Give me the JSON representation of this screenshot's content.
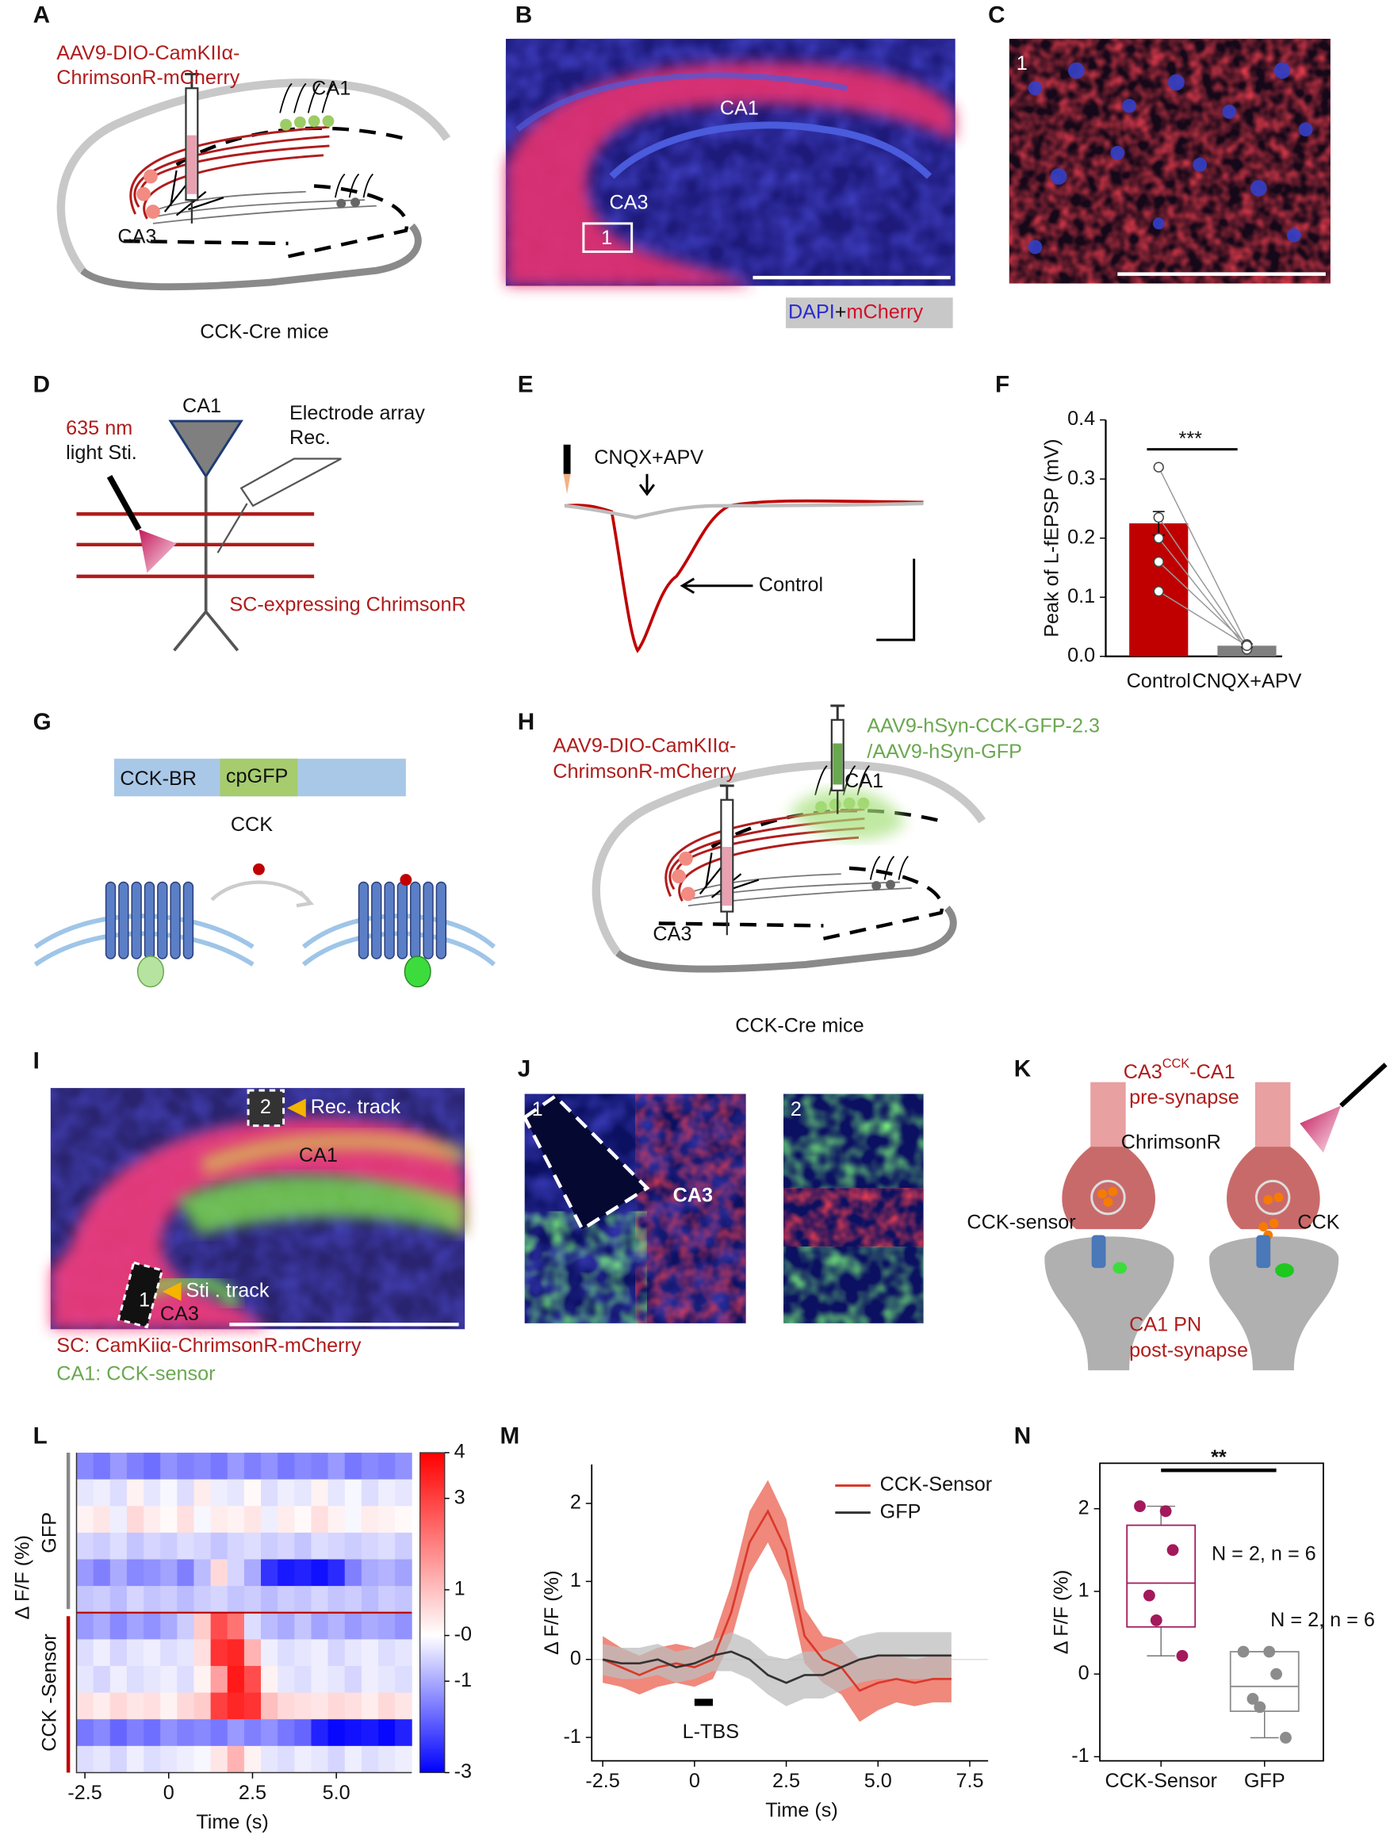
{
  "panels": {
    "A": {
      "letter": "A",
      "texts": [
        "AAV9-DIO-CamKIIα-",
        "ChrimsonR-mCherry",
        "CA1",
        "CA3",
        "CCK-Cre mice"
      ]
    },
    "B": {
      "letter": "B",
      "texts": [
        "CA1",
        "CA3",
        "1",
        "DAPI",
        "+",
        "mCherry"
      ]
    },
    "C": {
      "letter": "C",
      "texts": [
        "1"
      ]
    },
    "D": {
      "letter": "D",
      "texts": [
        "CA1",
        "635 nm",
        "light Sti.",
        "Electrode array",
        "Rec.",
        "SC-expressing ChrimsonR"
      ]
    },
    "E": {
      "letter": "E",
      "texts": [
        "CNQX+APV",
        "Control"
      ]
    },
    "F": {
      "letter": "F"
    },
    "G": {
      "letter": "G",
      "texts": [
        "CCK-BR",
        "cpGFP",
        "CCK"
      ]
    },
    "H": {
      "letter": "H",
      "texts": [
        "AAV9-DIO-CamKIIα-",
        "ChrimsonR-mCherry",
        "AAV9-hSyn-CCK-GFP-2.3",
        "/AAV9-hSyn-GFP",
        "CA1",
        "CA3",
        "CCK-Cre mice"
      ]
    },
    "I": {
      "letter": "I",
      "texts": [
        "2",
        "Rec. track",
        "CA1",
        "1",
        "Sti . track",
        "CA3",
        "SC: CamKiiα-ChrimsonR-mCherry",
        "CA1: CCK-sensor"
      ]
    },
    "J": {
      "letter": "J",
      "texts": [
        "1",
        "CA3",
        "2"
      ]
    },
    "K": {
      "letter": "K",
      "texts": [
        "CA3",
        "CCK",
        "-CA1",
        "pre-synapse",
        "ChrimsonR",
        "CCK-sensor",
        "CCK",
        "CA1 PN",
        "post-synapse"
      ]
    },
    "L": {
      "letter": "L"
    },
    "M": {
      "letter": "M"
    },
    "N": {
      "letter": "N"
    }
  },
  "chart_data": [
    {
      "type": "bar",
      "categories": [
        "Control",
        "CNQX+APV"
      ],
      "values": [
        0.225,
        0.018
      ],
      "errors": [
        0.02,
        0.003
      ],
      "colors": [
        "#c00000",
        "#7f7f7f"
      ],
      "points": [
        [
          0.32,
          0.235,
          0.2,
          0.16,
          0.11
        ],
        [
          0.02,
          0.015,
          0.012,
          0.02,
          0.018
        ]
      ],
      "ylabel": "Peak of L-fEPSP (mV)",
      "ylim": [
        0,
        0.4
      ],
      "yticks": [
        {
          "value": 0,
          "label": "0.0"
        },
        0.1,
        0.2,
        0.3,
        0.4
      ],
      "annotation": "***"
    },
    {
      "type": "heatmap",
      "x": [
        -2.5,
        -2,
        -1.5,
        -1,
        -0.5,
        0,
        0.5,
        1,
        1.5,
        2,
        2.5,
        3,
        3.5,
        4,
        4.5,
        5,
        5.5,
        6,
        6.5,
        7
      ],
      "rows": [
        [
          -1.4,
          -1.6,
          -1.2,
          -1.5,
          -1.7,
          -1.3,
          -1.5,
          -1.4,
          -1.6,
          -1.2,
          -1.5,
          -1.3,
          -1.6,
          -1.4,
          -1.5,
          -1.2,
          -1.6,
          -1.4,
          -1.5,
          -1.3
        ],
        [
          -0.3,
          -0.2,
          -0.4,
          0.2,
          -0.3,
          -0.1,
          -0.4,
          0.3,
          -0.2,
          -0.3,
          0.1,
          -0.4,
          -0.2,
          -0.3,
          0.2,
          -0.3,
          -0.1,
          -0.4,
          -0.2,
          -0.3
        ],
        [
          0.2,
          0.4,
          -0.2,
          0.6,
          0.3,
          0.1,
          0.5,
          -0.1,
          0.3,
          0.2,
          0.4,
          -0.2,
          0.3,
          0.1,
          0.5,
          0.2,
          -0.1,
          0.3,
          0.2,
          0.1
        ],
        [
          -0.5,
          -0.6,
          -0.4,
          -0.7,
          -0.5,
          -0.6,
          -0.4,
          -0.5,
          -0.7,
          -0.5,
          -0.4,
          -0.6,
          -0.5,
          -0.7,
          -0.4,
          -0.5,
          -0.6,
          -0.5,
          -0.4,
          -0.6
        ],
        [
          -1.2,
          -1.5,
          -1.0,
          -1.4,
          -1.3,
          -1.1,
          -1.5,
          -0.8,
          0.6,
          -0.5,
          -1.0,
          -2.4,
          -2.7,
          -2.6,
          -2.8,
          -2.5,
          -1.5,
          -1.0,
          -0.9,
          -1.1
        ],
        [
          -0.7,
          -0.6,
          -0.8,
          -0.5,
          -0.7,
          -0.6,
          -0.8,
          -0.6,
          -0.5,
          -0.7,
          -0.6,
          -0.8,
          -0.6,
          -0.7,
          -0.5,
          -0.7,
          -0.6,
          -0.8,
          -0.6,
          -0.7
        ],
        [
          -1.2,
          -1.0,
          -1.4,
          -1.1,
          -1.3,
          -1.0,
          -0.6,
          0.8,
          2.8,
          2.2,
          -0.4,
          -0.8,
          -1.0,
          -0.7,
          -1.1,
          -0.9,
          -1.2,
          -1.0,
          -1.1,
          -1.3
        ],
        [
          -0.4,
          -0.2,
          -0.5,
          -0.3,
          -0.2,
          -0.4,
          -0.3,
          0.5,
          3.2,
          3.4,
          1.2,
          -0.2,
          -0.4,
          -0.3,
          -0.2,
          -0.5,
          -0.3,
          -0.2,
          -0.4,
          -0.3
        ],
        [
          -0.3,
          -0.5,
          -0.2,
          -0.4,
          -0.3,
          -0.2,
          -0.4,
          0.2,
          1.5,
          3.6,
          2.8,
          0.2,
          -0.3,
          -0.4,
          -0.2,
          -0.3,
          -0.5,
          -0.2,
          -0.3,
          -0.4
        ],
        [
          0.5,
          0.3,
          0.6,
          0.4,
          0.5,
          0.2,
          0.6,
          0.8,
          3.0,
          3.4,
          3.2,
          1.0,
          0.6,
          0.5,
          0.4,
          0.6,
          0.5,
          0.3,
          0.6,
          0.4
        ],
        [
          -1.6,
          -1.4,
          -1.8,
          -1.5,
          -1.7,
          -1.3,
          -1.5,
          -1.4,
          -1.6,
          -1.2,
          -1.5,
          -1.3,
          -1.6,
          -1.8,
          -2.6,
          -2.9,
          -2.8,
          -2.7,
          -2.9,
          -2.6
        ],
        [
          -0.4,
          -0.3,
          -0.5,
          -0.2,
          -0.4,
          -0.3,
          -0.2,
          -0.1,
          0.4,
          1.2,
          0.2,
          -0.3,
          -0.4,
          -0.2,
          -0.3,
          -0.5,
          -0.2,
          -0.4,
          -0.3,
          -0.2
        ]
      ],
      "clim": [
        -3,
        4
      ],
      "colorbar_ticks": [
        4,
        3,
        1,
        {
          "value": 0,
          "label": "-0"
        },
        -1,
        -3
      ],
      "xlim": [
        -2.75,
        7.25
      ],
      "xticks": [
        -2.5,
        0,
        2.5,
        {
          "value": 5,
          "label": "5.0"
        }
      ],
      "xlabel": "Time (s)",
      "ylabel": "Δ F/F (%)",
      "groups": [
        "GFP",
        "CCK -Sensor"
      ]
    },
    {
      "type": "line",
      "x": [
        -2.5,
        -2,
        -1.5,
        -1,
        -0.5,
        0,
        0.5,
        1,
        1.5,
        2,
        2.5,
        3,
        3.5,
        4,
        4.5,
        5,
        5.5,
        6,
        6.5,
        7
      ],
      "series": [
        {
          "name": "CCK-Sensor",
          "color": "#d93a2b",
          "band_color": "#ee7b6e",
          "values": [
            0.0,
            -0.1,
            -0.2,
            -0.1,
            -0.05,
            -0.1,
            0.0,
            0.6,
            1.5,
            1.9,
            1.4,
            0.3,
            0.0,
            -0.1,
            -0.4,
            -0.3,
            -0.25,
            -0.3,
            -0.25,
            -0.25
          ],
          "errors": [
            0.3,
            0.25,
            0.25,
            0.25,
            0.25,
            0.25,
            0.25,
            0.35,
            0.4,
            0.4,
            0.4,
            0.35,
            0.3,
            0.35,
            0.4,
            0.35,
            0.3,
            0.3,
            0.3,
            0.3
          ]
        },
        {
          "name": "GFP",
          "color": "#333333",
          "band_color": "#bdbdbd",
          "values": [
            0.0,
            -0.05,
            -0.05,
            0.0,
            -0.1,
            -0.05,
            0.05,
            0.1,
            0.0,
            -0.2,
            -0.3,
            -0.2,
            -0.2,
            -0.1,
            0.0,
            0.05,
            0.05,
            0.05,
            0.05,
            0.05
          ],
          "errors": [
            0.2,
            0.2,
            0.2,
            0.2,
            0.2,
            0.2,
            0.2,
            0.25,
            0.25,
            0.25,
            0.3,
            0.3,
            0.3,
            0.3,
            0.3,
            0.3,
            0.3,
            0.3,
            0.3,
            0.3
          ]
        }
      ],
      "xlim": [
        -2.8,
        8
      ],
      "ylim": [
        -1.3,
        2.5
      ],
      "xticks": [
        -2.5,
        0,
        2.5,
        {
          "value": 5,
          "label": "5.0"
        },
        7.5
      ],
      "yticks": [
        -1,
        0,
        1,
        2
      ],
      "xlabel": "Time (s)",
      "ylabel": "Δ F/F (%)",
      "legend": "upper right",
      "annotation": {
        "text": "L-TBS",
        "x": [
          0,
          0.5
        ],
        "y": -0.55
      }
    },
    {
      "type": "box",
      "categories": [
        "CCK-Sensor",
        "GFP"
      ],
      "colors": [
        "#a3195b",
        "#8c8c8c"
      ],
      "q1": [
        0.57,
        -0.45
      ],
      "median": [
        1.1,
        -0.15
      ],
      "q3": [
        1.8,
        0.27
      ],
      "whisker_low": [
        0.22,
        -0.77
      ],
      "whisker_high": [
        2.03,
        0.27
      ],
      "points": [
        [
          2.03,
          1.97,
          1.5,
          0.95,
          0.65,
          0.22
        ],
        [
          0.27,
          0.27,
          0.0,
          -0.3,
          -0.4,
          -0.77
        ]
      ],
      "notes": [
        "N = 2,  n = 6",
        "N = 2, n = 6"
      ],
      "annotation": "**",
      "ylabel": "Δ F/F (%)",
      "ylim": [
        -1.05,
        2.55
      ],
      "yticks": [
        -1,
        0,
        1,
        2
      ]
    }
  ]
}
